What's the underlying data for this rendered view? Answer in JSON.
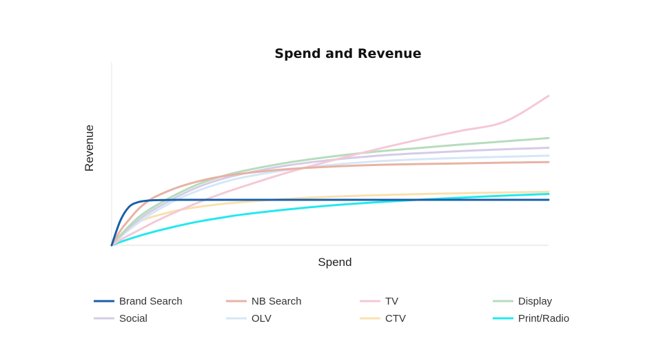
{
  "chart_data": {
    "type": "line",
    "title": "Spend and Revenue",
    "xlabel": "Spend",
    "ylabel": "Revenue",
    "xlim": [
      0,
      100
    ],
    "ylim": [
      0,
      100
    ],
    "grid": false,
    "legend_position": "bottom",
    "x": [
      0,
      2,
      4,
      6,
      8,
      10,
      15,
      20,
      25,
      30,
      40,
      50,
      60,
      70,
      80,
      90,
      100
    ],
    "series": [
      {
        "name": "Brand Search",
        "color": "#1a5fa8",
        "values": [
          0,
          13.5,
          21,
          23.5,
          24.3,
          24.6,
          24.8,
          24.8,
          24.8,
          24.8,
          24.8,
          24.8,
          24.8,
          24.8,
          24.8,
          24.8,
          24.8
        ]
      },
      {
        "name": "NB Search",
        "color": "#e8b2a4",
        "values": [
          0,
          8,
          14,
          19.5,
          23.5,
          26.5,
          31.5,
          35,
          37.5,
          39.2,
          41.5,
          42.9,
          43.8,
          44.3,
          44.7,
          45.1,
          45.4
        ]
      },
      {
        "name": "TV",
        "color": "#f5c8d6",
        "values": [
          0,
          3,
          5.5,
          8,
          10.5,
          13,
          18.5,
          23.5,
          28,
          32,
          39.5,
          46,
          52,
          57.5,
          62.5,
          67.5,
          81.5
        ]
      },
      {
        "name": "Display",
        "color": "#b6dcbc",
        "values": [
          0,
          5.5,
          10.5,
          15,
          18.5,
          21.5,
          28,
          33.5,
          37.5,
          40.5,
          45,
          48.3,
          51,
          53,
          55,
          56.7,
          58.5
        ]
      },
      {
        "name": "Social",
        "color": "#d4cce6",
        "values": [
          0,
          5,
          9.5,
          13.5,
          17,
          20,
          26.5,
          32,
          36,
          39,
          43.5,
          46.5,
          48.7,
          50.2,
          51.4,
          52.4,
          53.2
        ]
      },
      {
        "name": "OLV",
        "color": "#d5e7f6",
        "values": [
          0,
          4.5,
          8.5,
          12,
          15.5,
          18.5,
          25,
          30,
          34,
          37,
          41,
          43.8,
          45.7,
          46.9,
          47.7,
          48.3,
          48.9
        ]
      },
      {
        "name": "CTV",
        "color": "#f9e1ae",
        "values": [
          0,
          5.5,
          9.5,
          12.5,
          14.5,
          16,
          19,
          21,
          22.5,
          23.6,
          25.3,
          26.5,
          27.3,
          27.9,
          28.4,
          28.8,
          29.2
        ]
      },
      {
        "name": "Print/Radio",
        "color": "#22e8ee",
        "values": [
          0,
          1.8,
          3.4,
          4.9,
          6.3,
          7.6,
          10.5,
          13,
          15,
          16.8,
          19.5,
          21.7,
          23.4,
          24.8,
          26,
          27.1,
          28
        ]
      }
    ]
  }
}
